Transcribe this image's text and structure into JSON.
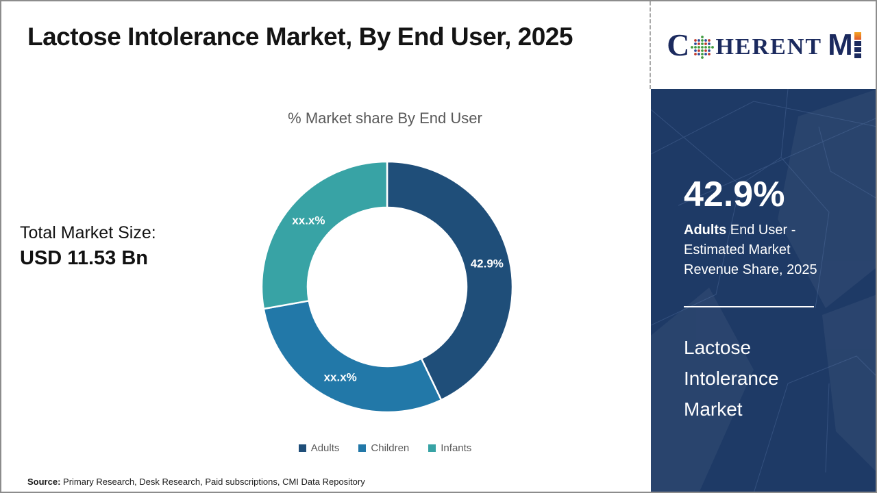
{
  "header": {
    "title": "Lactose Intolerance Market, By End User, 2025"
  },
  "logo": {
    "part_c": "C",
    "part_herent": "HERENT",
    "part_m": "M",
    "globe_icon": "dotted-globe-icon",
    "colors": {
      "navy": "#1b2a5e",
      "orange": "#e8762c",
      "dot_green": "#3f9b3f",
      "dot_red": "#c0392b",
      "dot_blue": "#2a4b9b"
    }
  },
  "left_panel": {
    "total_label": "Total Market Size:",
    "total_value": "USD 11.53 Bn"
  },
  "chart_data": {
    "type": "pie",
    "subtype": "donut",
    "title": "% Market share By End User",
    "categories": [
      "Adults",
      "Children",
      "Infants"
    ],
    "values": [
      42.9,
      29.3,
      27.8
    ],
    "slice_labels": [
      "42.9%",
      "xx.x%",
      "xx.x%"
    ],
    "colors": [
      "#1F4E79",
      "#2278A8",
      "#38A3A5"
    ],
    "legend_position": "bottom",
    "geometry": {
      "outer_radius": 183,
      "inner_radius": 116,
      "start_angle_deg": -90,
      "direction": "clockwise"
    }
  },
  "sidebar": {
    "bg_color": "#1E3A66",
    "highlight_value": "42.9%",
    "highlight_bold": "Adults",
    "highlight_rest": " End User - Estimated Market Revenue Share, 2025",
    "market_name": "Lactose Intolerance Market"
  },
  "footer": {
    "source_label": "Source:",
    "source_text": " Primary Research, Desk Research, Paid subscriptions, CMI Data Repository"
  }
}
